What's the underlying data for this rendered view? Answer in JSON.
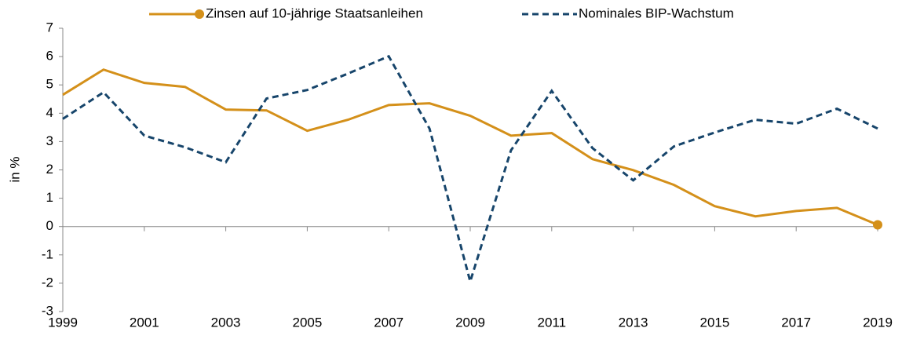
{
  "chart_data": {
    "type": "line",
    "ylabel": "in %",
    "x": [
      1999,
      2000,
      2001,
      2002,
      2003,
      2004,
      2005,
      2006,
      2007,
      2008,
      2009,
      2010,
      2011,
      2012,
      2013,
      2014,
      2015,
      2016,
      2017,
      2018,
      2019
    ],
    "xlim": [
      1999,
      2019
    ],
    "xticks": [
      1999,
      2001,
      2003,
      2005,
      2007,
      2009,
      2011,
      2013,
      2015,
      2017,
      2019
    ],
    "ylim": [
      -3,
      7
    ],
    "yticks": [
      -3,
      -2,
      -1,
      0,
      1,
      2,
      3,
      4,
      5,
      6,
      7
    ],
    "legend": "top",
    "series": [
      {
        "name": "Zinsen auf 10-jährige Staatsanleihen",
        "color": "#d4901a",
        "dashed": false,
        "end_marker": true,
        "values": [
          4.65,
          5.54,
          5.07,
          4.93,
          4.13,
          4.1,
          3.38,
          3.77,
          4.29,
          4.35,
          3.91,
          3.21,
          3.3,
          2.38,
          1.99,
          1.47,
          0.72,
          0.36,
          0.55,
          0.66,
          0.06
        ]
      },
      {
        "name": "Nominales BIP-Wachstum",
        "color": "#17456b",
        "dashed": true,
        "end_marker": false,
        "values": [
          3.8,
          4.74,
          3.21,
          2.8,
          2.27,
          4.52,
          4.82,
          5.4,
          6.01,
          3.46,
          -1.94,
          2.69,
          4.79,
          2.77,
          1.63,
          2.83,
          3.32,
          3.77,
          3.63,
          4.16,
          3.46
        ]
      }
    ]
  }
}
